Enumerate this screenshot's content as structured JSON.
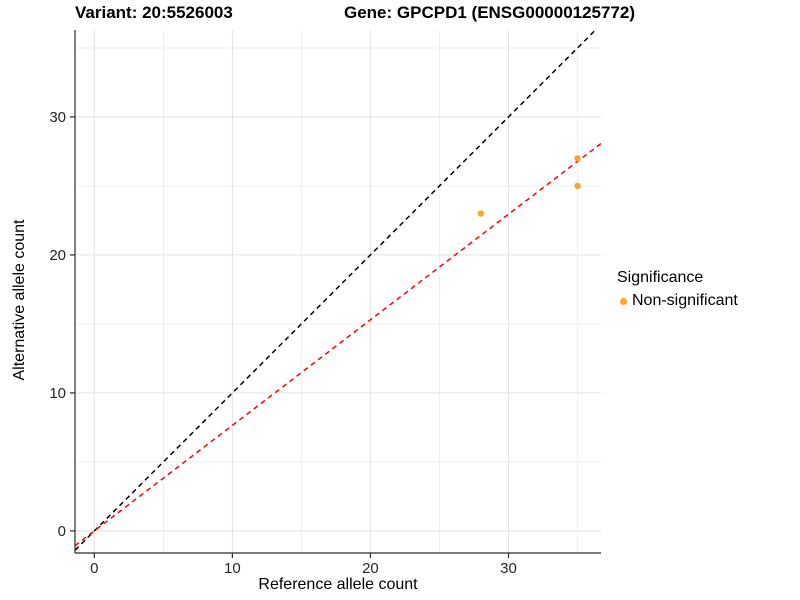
{
  "figure": {
    "title_left": "Variant: 20:5526003",
    "title_right": "Gene: GPCPD1 (ENSG00000125772)"
  },
  "chart_data": {
    "type": "scatter",
    "title": "Variant: 20:5526003  /  Gene: GPCPD1 (ENSG00000125772)",
    "xlabel": "Reference allele count",
    "ylabel": "Alternative allele count",
    "xlim": [
      -1.4,
      36.7
    ],
    "ylim": [
      -1.6,
      36.3
    ],
    "x_major_ticks": [
      0,
      10,
      20,
      30
    ],
    "x_minor_ticks": [
      5,
      15,
      25,
      35
    ],
    "y_major_ticks": [
      0,
      10,
      20,
      30
    ],
    "y_minor_ticks": [
      5,
      15,
      25,
      35
    ],
    "grid": "major+minor",
    "colors": {
      "point_orange": "#FFA51E",
      "identity_line": "#000000",
      "fit_line": "#FF0000",
      "grid_major": "#E3E3E3",
      "grid_minor": "#EFEFEF",
      "axis": "#2B2B2B"
    },
    "series": [
      {
        "name": "Non-significant",
        "color": "#FFA51E",
        "points": [
          {
            "x": 28,
            "y": 23
          },
          {
            "x": 35,
            "y": 25
          },
          {
            "x": 35,
            "y": 27
          }
        ]
      }
    ],
    "reference_lines": [
      {
        "name": "identity",
        "slope": 1,
        "intercept": 0,
        "color": "#000000",
        "style": "dashed"
      },
      {
        "name": "allelic-ratio-fit",
        "slope": 0.765,
        "intercept": 0,
        "color": "#FF0000",
        "style": "dashed"
      }
    ],
    "legend": {
      "title": "Significance",
      "position": "right",
      "entries": [
        {
          "label": "Non-significant",
          "color": "#FFA51E",
          "marker": "circle"
        }
      ]
    }
  }
}
